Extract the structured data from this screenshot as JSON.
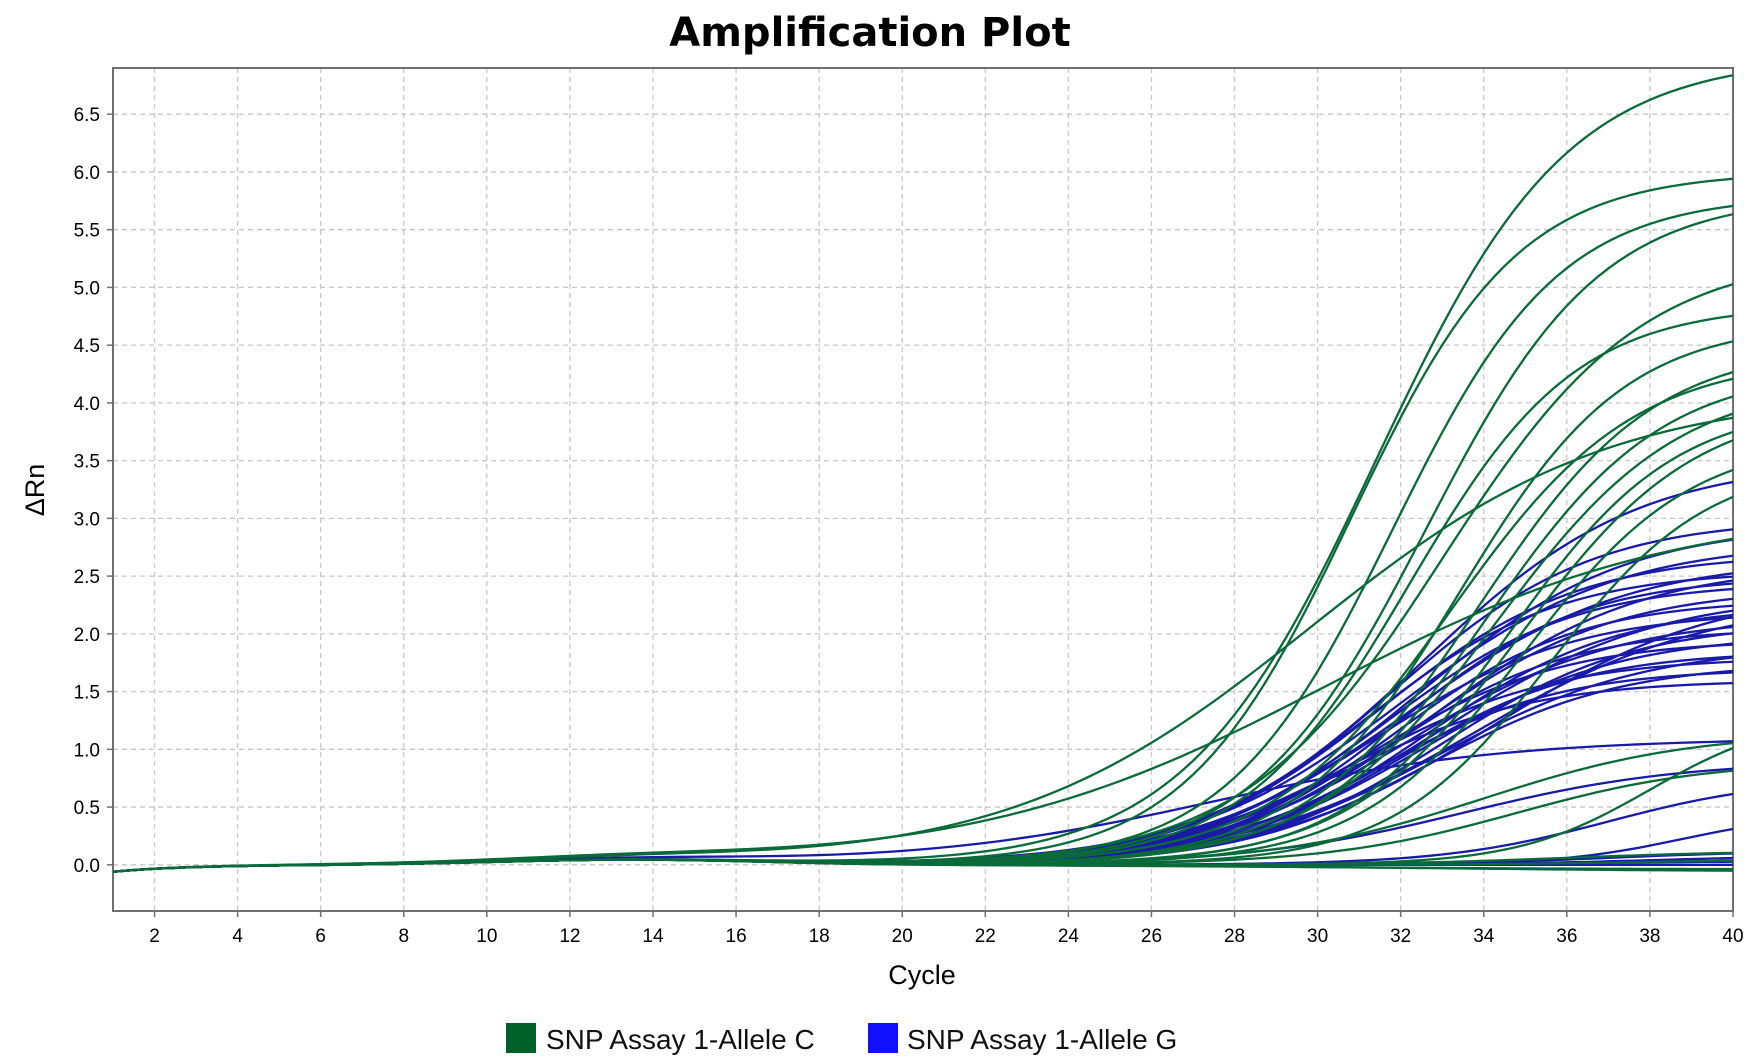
{
  "chart_data": {
    "type": "line",
    "title": "Amplification Plot",
    "xlabel": "Cycle",
    "ylabel": "ΔRn",
    "xlim": [
      1,
      40
    ],
    "ylim": [
      -0.4,
      6.9
    ],
    "xticks": [
      2,
      4,
      6,
      8,
      10,
      12,
      14,
      16,
      18,
      20,
      22,
      24,
      26,
      28,
      30,
      32,
      34,
      36,
      38,
      40
    ],
    "yticks": [
      0.0,
      0.5,
      1.0,
      1.5,
      2.0,
      2.5,
      3.0,
      3.5,
      4.0,
      4.5,
      5.0,
      5.5,
      6.0,
      6.5
    ],
    "ytick_labels": [
      "0.0",
      "0.5",
      "1.0",
      "1.5",
      "2.0",
      "2.5",
      "3.0",
      "3.5",
      "4.0",
      "4.5",
      "5.0",
      "5.5",
      "6.0",
      "6.5"
    ],
    "grid": true,
    "legend_position": "bottom-center",
    "legend": [
      {
        "name": "SNP Assay 1-Allele C",
        "color": "#00602a"
      },
      {
        "name": "SNP Assay 1-Allele G",
        "color": "#1010ff"
      }
    ],
    "series": [
      {
        "name": "SNP Assay 1-Allele C",
        "color": "#0b6a3a",
        "curves": [
          {
            "plateau": 7.0,
            "midpoint": 31.4,
            "slope": 2.3
          },
          {
            "plateau": 6.0,
            "midpoint": 30.8,
            "slope": 2.0
          },
          {
            "plateau": 5.8,
            "midpoint": 31.8,
            "slope": 2.0
          },
          {
            "plateau": 5.8,
            "midpoint": 32.6,
            "slope": 2.1
          },
          {
            "plateau": 5.3,
            "midpoint": 33.0,
            "slope": 2.4
          },
          {
            "plateau": 4.85,
            "midpoint": 32.2,
            "slope": 2.0
          },
          {
            "plateau": 4.7,
            "midpoint": 33.4,
            "slope": 2.0
          },
          {
            "plateau": 4.4,
            "midpoint": 33.2,
            "slope": 2.2
          },
          {
            "plateau": 4.5,
            "midpoint": 33.9,
            "slope": 2.1
          },
          {
            "plateau": 4.3,
            "midpoint": 34.1,
            "slope": 2.1
          },
          {
            "plateau": 4.2,
            "midpoint": 34.3,
            "slope": 2.2
          },
          {
            "plateau": 4.0,
            "midpoint": 34.6,
            "slope": 2.0
          },
          {
            "plateau": 4.0,
            "midpoint": 34.9,
            "slope": 2.1
          },
          {
            "plateau": 3.7,
            "midpoint": 35.0,
            "slope": 2.0
          },
          {
            "plateau": 3.5,
            "midpoint": 35.6,
            "slope": 1.9
          },
          {
            "plateau": 4.1,
            "midpoint": 29.8,
            "slope": 3.6
          },
          {
            "plateau": 3.1,
            "midpoint": 30.2,
            "slope": 4.2
          },
          {
            "plateau": 1.15,
            "midpoint": 34.0,
            "slope": 2.5
          },
          {
            "plateau": 0.9,
            "midpoint": 34.8,
            "slope": 2.3
          },
          {
            "plateau": 1.3,
            "midpoint": 38.0,
            "slope": 1.6
          },
          {
            "plateau": 0.12,
            "midpoint": 36.0,
            "slope": 2.2
          },
          {
            "plateau": -0.04,
            "midpoint": 30.0,
            "slope": 4.0
          },
          {
            "plateau": -0.06,
            "midpoint": 33.0,
            "slope": 4.0
          },
          {
            "plateau": 0.05,
            "midpoint": 38.0,
            "slope": 2.0
          }
        ]
      },
      {
        "name": "SNP Assay 1-Allele G",
        "color": "#1a1aa8",
        "curves": [
          {
            "plateau": 3.5,
            "midpoint": 32.5,
            "slope": 2.6
          },
          {
            "plateau": 3.0,
            "midpoint": 31.8,
            "slope": 2.4
          },
          {
            "plateau": 2.95,
            "midpoint": 32.4,
            "slope": 2.5
          },
          {
            "plateau": 2.8,
            "midpoint": 32.0,
            "slope": 2.6
          },
          {
            "plateau": 2.7,
            "midpoint": 31.5,
            "slope": 2.4
          },
          {
            "plateau": 2.65,
            "midpoint": 32.2,
            "slope": 2.6
          },
          {
            "plateau": 2.6,
            "midpoint": 32.8,
            "slope": 2.5
          },
          {
            "plateau": 2.55,
            "midpoint": 31.2,
            "slope": 2.3
          },
          {
            "plateau": 2.5,
            "midpoint": 32.0,
            "slope": 2.2
          },
          {
            "plateau": 2.45,
            "midpoint": 31.6,
            "slope": 2.3
          },
          {
            "plateau": 2.4,
            "midpoint": 32.4,
            "slope": 2.4
          },
          {
            "plateau": 2.35,
            "midpoint": 33.0,
            "slope": 2.6
          },
          {
            "plateau": 2.3,
            "midpoint": 31.9,
            "slope": 2.2
          },
          {
            "plateau": 2.25,
            "midpoint": 32.6,
            "slope": 2.3
          },
          {
            "plateau": 2.2,
            "midpoint": 31.4,
            "slope": 2.4
          },
          {
            "plateau": 2.15,
            "midpoint": 32.2,
            "slope": 2.5
          },
          {
            "plateau": 2.1,
            "midpoint": 33.0,
            "slope": 2.3
          },
          {
            "plateau": 2.05,
            "midpoint": 31.7,
            "slope": 2.2
          },
          {
            "plateau": 2.0,
            "midpoint": 32.5,
            "slope": 2.4
          },
          {
            "plateau": 1.95,
            "midpoint": 31.3,
            "slope": 2.3
          },
          {
            "plateau": 1.9,
            "midpoint": 32.9,
            "slope": 2.5
          },
          {
            "plateau": 1.85,
            "midpoint": 32.0,
            "slope": 2.2
          },
          {
            "plateau": 1.8,
            "midpoint": 31.0,
            "slope": 2.4
          },
          {
            "plateau": 1.75,
            "midpoint": 32.7,
            "slope": 2.3
          },
          {
            "plateau": 1.7,
            "midpoint": 31.5,
            "slope": 2.2
          },
          {
            "plateau": 1.6,
            "midpoint": 30.6,
            "slope": 2.3
          },
          {
            "plateau": 2.3,
            "midpoint": 33.8,
            "slope": 2.8
          },
          {
            "plateau": 2.4,
            "midpoint": 34.2,
            "slope": 2.7
          },
          {
            "plateau": 1.1,
            "midpoint": 27.5,
            "slope": 3.5
          },
          {
            "plateau": 0.9,
            "midpoint": 33.5,
            "slope": 2.6
          },
          {
            "plateau": 0.75,
            "midpoint": 37.0,
            "slope": 2.0
          },
          {
            "plateau": 0.45,
            "midpoint": 38.8,
            "slope": 1.5
          },
          {
            "plateau": 0.12,
            "midpoint": 37.0,
            "slope": 2.0
          },
          {
            "plateau": 0.08,
            "midpoint": 38.0,
            "slope": 2.0
          },
          {
            "plateau": 0.03,
            "midpoint": 36.0,
            "slope": 2.0
          },
          {
            "plateau": 0.0,
            "midpoint": 30.0,
            "slope": 3.0
          }
        ]
      }
    ]
  }
}
